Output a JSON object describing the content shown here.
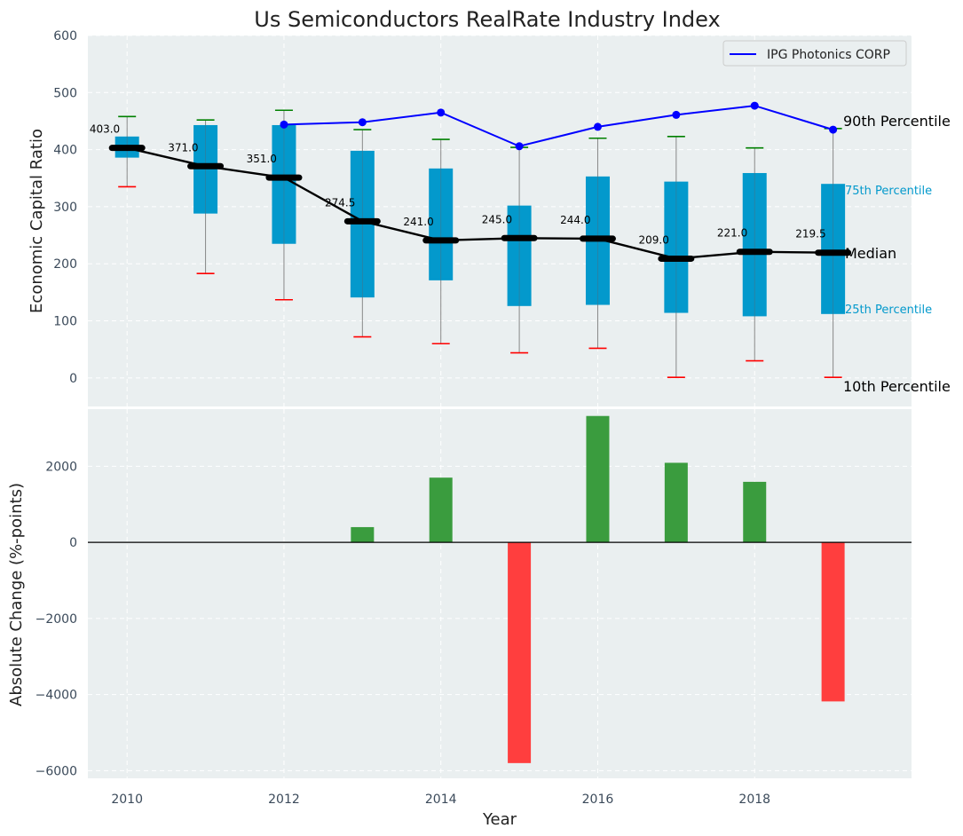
{
  "chart_data": [
    {
      "type": "box",
      "title": "Us Semiconductors RealRate Industry Index",
      "ylabel": "Economic Capital Ratio",
      "ylim": [
        -50,
        600
      ],
      "yticks": [
        0,
        100,
        200,
        300,
        400,
        500,
        600
      ],
      "x": [
        2010,
        2011,
        2012,
        2013,
        2014,
        2015,
        2016,
        2017,
        2018,
        2019
      ],
      "p10": [
        335,
        183,
        137,
        72,
        60,
        44,
        52,
        1,
        30,
        1
      ],
      "p25": [
        386,
        288,
        235,
        141,
        171,
        126,
        128,
        114,
        108,
        112
      ],
      "median": [
        403.0,
        371.0,
        351.0,
        274.5,
        241.0,
        245.0,
        244.0,
        209.0,
        221.0,
        219.5
      ],
      "median_labels": [
        "403.0",
        "371.0",
        "351.0",
        "274.5",
        "241.0",
        "245.0",
        "244.0",
        "209.0",
        "221.0",
        "219.5"
      ],
      "p75": [
        423,
        443,
        443,
        398,
        367,
        302,
        353,
        344,
        359,
        340
      ],
      "p90": [
        458,
        452,
        469,
        435,
        418,
        404,
        420,
        423,
        403,
        437
      ],
      "company": {
        "name": "IPG Photonics CORP",
        "x": [
          2012,
          2013,
          2014,
          2015,
          2016,
          2017,
          2018,
          2019
        ],
        "values": [
          444,
          448,
          465,
          406,
          440,
          461,
          477,
          435
        ]
      },
      "annotations": {
        "p90": "90th Percentile",
        "p75": "75th Percentile",
        "median": "Median",
        "p25": "25th Percentile",
        "p10": "10th Percentile"
      },
      "legend": "top-right"
    },
    {
      "type": "bar",
      "xlabel": "Year",
      "ylabel": "Absolute Change (%-points)",
      "ylim": [
        -6200,
        3500
      ],
      "yticks": [
        -6000,
        -4000,
        -2000,
        0,
        2000
      ],
      "ytick_labels": [
        "−6000",
        "−4000",
        "−2000",
        "0",
        "2000"
      ],
      "x": [
        2013,
        2014,
        2015,
        2016,
        2017,
        2018,
        2019
      ],
      "values": [
        400,
        1700,
        -5800,
        3320,
        2090,
        1590,
        -4180
      ],
      "xticks": [
        2010,
        2012,
        2014,
        2016,
        2018
      ]
    }
  ],
  "colors": {
    "background": "#eaeff0",
    "box": "#0399cc",
    "median": "#000000",
    "company": "#0000ff",
    "p90_cap": "#008000",
    "p10_cap": "#ff0000",
    "whisker": "#888888",
    "bar_positive": "#3a9c3e",
    "bar_negative": "#ff3e3e",
    "small_label": "#0399cc"
  }
}
